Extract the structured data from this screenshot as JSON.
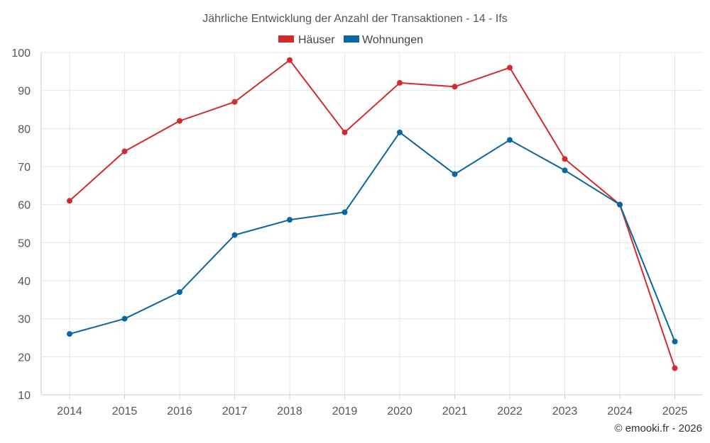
{
  "chart_data": {
    "type": "line",
    "title": "Jährliche Entwicklung der Anzahl der Transaktionen - 14 - Ifs",
    "categories": [
      "2014",
      "2015",
      "2016",
      "2017",
      "2018",
      "2019",
      "2020",
      "2021",
      "2022",
      "2023",
      "2024",
      "2025"
    ],
    "series": [
      {
        "name": "Häuser",
        "color": "#d22b2b",
        "values": [
          61,
          74,
          82,
          87,
          98,
          79,
          92,
          91,
          96,
          72,
          60,
          17
        ]
      },
      {
        "name": "Wohnungen",
        "color": "#0a66a0",
        "values": [
          26,
          30,
          37,
          52,
          56,
          58,
          79,
          68,
          77,
          69,
          60,
          24
        ]
      }
    ],
    "ylim": [
      10,
      100
    ],
    "yticks": [
      10,
      20,
      30,
      40,
      50,
      60,
      70,
      80,
      90,
      100
    ],
    "xlabel": "",
    "ylabel": "",
    "grid": true,
    "legend": "top-center"
  },
  "footer": {
    "copyright": "© emooki.fr - 2026"
  }
}
